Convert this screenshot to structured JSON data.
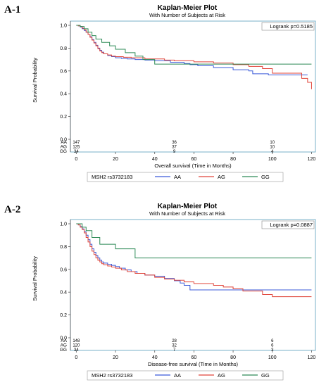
{
  "panels": [
    {
      "label": "A-1"
    },
    {
      "label": "A-2"
    }
  ],
  "chart_data": [
    {
      "type": "line",
      "title": "Kaplan-Meier Plot",
      "subtitle": "With Number of Subjects at Risk",
      "xlabel": "Overall survival (Time in Months)",
      "ylabel": "Survival Probability",
      "xlim": [
        -3,
        122
      ],
      "ylim": [
        0,
        1.0
      ],
      "xticks": [
        "0",
        "20",
        "40",
        "60",
        "80",
        "100",
        "120"
      ],
      "xtick_values": [
        0,
        20,
        40,
        60,
        80,
        100,
        120
      ],
      "yticks": [
        "0.0",
        "0.2",
        "0.4",
        "0.6",
        "0.8",
        "1.0"
      ],
      "ytick_values": [
        0,
        0.2,
        0.4,
        0.6,
        0.8,
        1.0
      ],
      "grid": false,
      "annotation": "Logrank p=0.5185",
      "legend_title": "MSH2 rs3732183",
      "legend_position": "bottom",
      "risk_times": [
        0,
        50,
        100
      ],
      "risk_table": [
        {
          "group": "AA",
          "counts": [
            "147",
            "36",
            "10"
          ]
        },
        {
          "group": "AG",
          "counts": [
            "125",
            "37",
            "10"
          ]
        },
        {
          "group": "GG",
          "counts": [
            "34",
            "9",
            "4"
          ]
        }
      ],
      "series": [
        {
          "name": "AA",
          "color": "#3b5bd9",
          "x": [
            0,
            1,
            2,
            3,
            4,
            5,
            6,
            7,
            8,
            9,
            10,
            11,
            12,
            13,
            14,
            16,
            18,
            20,
            23,
            26,
            30,
            35,
            40,
            48,
            55,
            58,
            62,
            70,
            80,
            88,
            90,
            98,
            118
          ],
          "y": [
            1.0,
            0.995,
            0.985,
            0.97,
            0.955,
            0.94,
            0.92,
            0.9,
            0.875,
            0.85,
            0.825,
            0.8,
            0.78,
            0.765,
            0.75,
            0.735,
            0.725,
            0.715,
            0.71,
            0.705,
            0.7,
            0.695,
            0.69,
            0.675,
            0.665,
            0.655,
            0.645,
            0.63,
            0.61,
            0.6,
            0.575,
            0.565,
            0.565
          ]
        },
        {
          "name": "AG",
          "color": "#e0453a",
          "x": [
            0,
            1,
            2,
            3,
            4,
            5,
            6,
            7,
            8,
            9,
            10,
            11,
            12,
            13,
            14,
            16,
            18,
            20,
            24,
            28,
            35,
            45,
            50,
            60,
            70,
            80,
            88,
            95,
            100,
            115,
            118,
            120
          ],
          "y": [
            1.0,
            0.995,
            0.99,
            0.975,
            0.96,
            0.94,
            0.92,
            0.895,
            0.87,
            0.845,
            0.82,
            0.795,
            0.775,
            0.76,
            0.75,
            0.74,
            0.73,
            0.725,
            0.72,
            0.715,
            0.705,
            0.695,
            0.69,
            0.68,
            0.67,
            0.655,
            0.64,
            0.62,
            0.58,
            0.535,
            0.5,
            0.44
          ]
        },
        {
          "name": "GG",
          "color": "#2e8b57",
          "x": [
            0,
            2,
            4,
            6,
            8,
            10,
            13,
            17,
            20,
            25,
            30,
            34,
            40,
            120
          ],
          "y": [
            1.0,
            0.99,
            0.97,
            0.94,
            0.91,
            0.88,
            0.85,
            0.82,
            0.79,
            0.76,
            0.73,
            0.7,
            0.66,
            0.66
          ]
        }
      ]
    },
    {
      "type": "line",
      "title": "Kaplan-Meier Plot",
      "subtitle": "With Number of Subjects at Risk",
      "xlabel": "Disease-free survival (Time in Months)",
      "ylabel": "Survival Probability",
      "xlim": [
        -3,
        122
      ],
      "ylim": [
        0,
        1.0
      ],
      "xticks": [
        "0",
        "20",
        "40",
        "60",
        "80",
        "100",
        "120"
      ],
      "xtick_values": [
        0,
        20,
        40,
        60,
        80,
        100,
        120
      ],
      "yticks": [
        "0.0",
        "0.2",
        "0.4",
        "0.6",
        "0.8",
        "1.0"
      ],
      "ytick_values": [
        0,
        0.2,
        0.4,
        0.6,
        0.8,
        1.0
      ],
      "grid": false,
      "annotation": "Logrank p=0.0887",
      "legend_title": "MSH2 rs3732183",
      "legend_position": "bottom",
      "risk_times": [
        0,
        50,
        100
      ],
      "risk_table": [
        {
          "group": "AA",
          "counts": [
            "148",
            "28",
            "6"
          ]
        },
        {
          "group": "AG",
          "counts": [
            "120",
            "32",
            "6"
          ]
        },
        {
          "group": "GG",
          "counts": [
            "34",
            "7",
            "3"
          ]
        }
      ],
      "series": [
        {
          "name": "AA",
          "color": "#3b5bd9",
          "x": [
            0,
            1,
            2,
            3,
            4,
            5,
            6,
            7,
            8,
            9,
            10,
            11,
            12,
            13,
            14,
            16,
            18,
            20,
            22,
            25,
            28,
            31,
            35,
            40,
            45,
            50,
            53,
            55,
            58,
            70,
            80,
            90,
            100,
            120
          ],
          "y": [
            1.0,
            0.99,
            0.975,
            0.955,
            0.93,
            0.9,
            0.86,
            0.82,
            0.78,
            0.75,
            0.72,
            0.7,
            0.68,
            0.665,
            0.655,
            0.645,
            0.635,
            0.625,
            0.61,
            0.595,
            0.58,
            0.565,
            0.55,
            0.54,
            0.52,
            0.5,
            0.48,
            0.46,
            0.42,
            0.42,
            0.42,
            0.42,
            0.42,
            0.42
          ]
        },
        {
          "name": "AG",
          "color": "#e0453a",
          "x": [
            0,
            1,
            2,
            3,
            4,
            5,
            6,
            7,
            8,
            9,
            10,
            11,
            12,
            13,
            14,
            16,
            18,
            20,
            23,
            26,
            30,
            35,
            40,
            45,
            50,
            55,
            60,
            70,
            75,
            80,
            85,
            95,
            100,
            120
          ],
          "y": [
            1.0,
            0.99,
            0.97,
            0.95,
            0.92,
            0.88,
            0.84,
            0.8,
            0.76,
            0.73,
            0.7,
            0.68,
            0.665,
            0.65,
            0.64,
            0.63,
            0.62,
            0.61,
            0.595,
            0.58,
            0.565,
            0.55,
            0.53,
            0.515,
            0.505,
            0.49,
            0.475,
            0.46,
            0.445,
            0.43,
            0.41,
            0.38,
            0.36,
            0.36
          ]
        },
        {
          "name": "GG",
          "color": "#2e8b57",
          "x": [
            0,
            3,
            5,
            8,
            12,
            20,
            30,
            60,
            120
          ],
          "y": [
            1.0,
            0.97,
            0.94,
            0.88,
            0.82,
            0.78,
            0.7,
            0.7,
            0.7
          ]
        }
      ]
    }
  ]
}
